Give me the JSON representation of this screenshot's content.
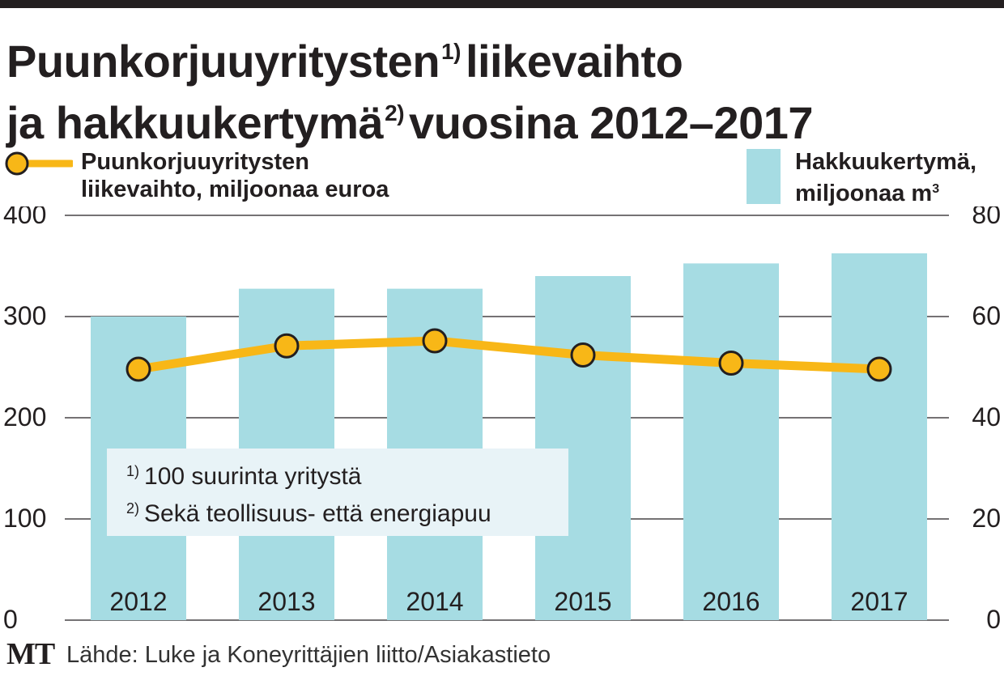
{
  "title": {
    "line1": "Puunkorjuuyritysten",
    "line1_sup": "1)",
    "line1_rest": "liikevaihto",
    "line2": "ja hakkuukertymä",
    "line2_sup": "2)",
    "line2_rest": "vuosina 2012–2017"
  },
  "legend": {
    "line_label_1": "Puunkorjuuyritysten",
    "line_label_2": "liikevaihto, miljoonaa euroa",
    "bar_label_1": "Hakkuukertymä,",
    "bar_label_2": "miljoonaa m",
    "bar_label_sup": "3"
  },
  "notes": {
    "note1_marker": "1)",
    "note1_text": "100 suurinta yritystä",
    "note2_marker": "2)",
    "note2_text": "Sekä teollisuus- että energiapuu"
  },
  "footer": {
    "logo": "MT",
    "source": "Lähde: Luke ja Koneyrittäjien liitto/Asiakastieto"
  },
  "colors": {
    "bar": "#a6dce3",
    "line": "#f8b717",
    "marker_fill": "#f8b717",
    "marker_stroke": "#231f20",
    "grid": "#231f20",
    "text": "#231f20"
  },
  "chart_data": {
    "type": "bar+line",
    "title": "Puunkorjuuyritysten liikevaihto ja hakkuukertymä vuosina 2012–2017",
    "categories": [
      "2012",
      "2013",
      "2014",
      "2015",
      "2016",
      "2017"
    ],
    "series": [
      {
        "name": "Hakkuukertymä, miljoonaa m³",
        "type": "bar",
        "axis": "right",
        "values": [
          60,
          65.5,
          65.5,
          68,
          70.5,
          72.5
        ]
      },
      {
        "name": "Puunkorjuuyritysten liikevaihto, miljoonaa euroa",
        "type": "line",
        "axis": "left",
        "values": [
          248,
          271,
          276,
          262,
          254,
          248
        ]
      }
    ],
    "y_left": {
      "label": "",
      "range": [
        0,
        400
      ],
      "ticks": [
        "0",
        "100",
        "200",
        "300",
        "400"
      ]
    },
    "y_right": {
      "label": "",
      "range": [
        0,
        80
      ],
      "ticks": [
        "0",
        "20",
        "40",
        "60",
        "80"
      ]
    },
    "grid": true,
    "legend": "top"
  }
}
